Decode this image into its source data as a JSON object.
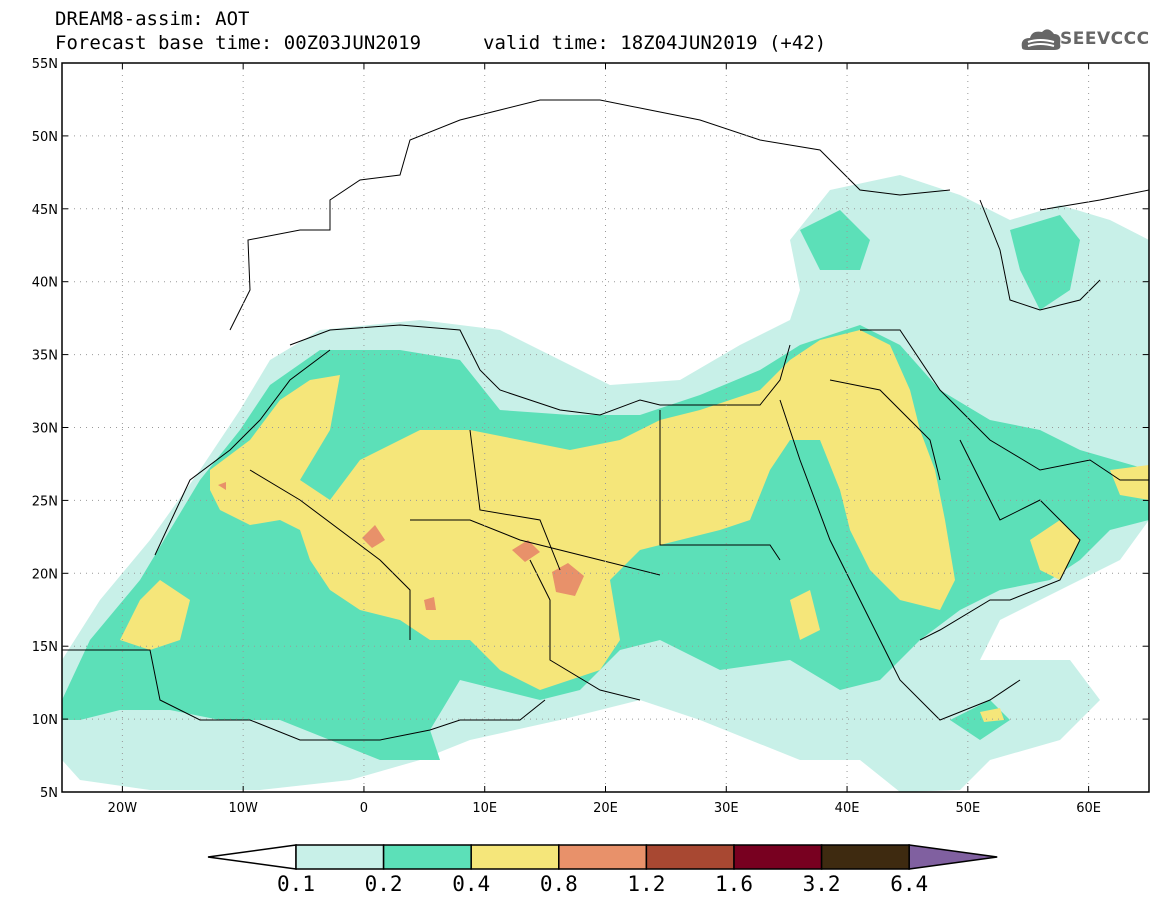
{
  "title": {
    "line1": "DREAM8-assim: AOT",
    "line2": "Forecast base time: 00Z03JUN2019",
    "valid": "valid time: 18Z04JUN2019 (+42)"
  },
  "logo": {
    "text": "SEEVCCC"
  },
  "axes": {
    "lat_ticks": [
      "55N",
      "50N",
      "45N",
      "40N",
      "35N",
      "30N",
      "25N",
      "20N",
      "15N",
      "10N",
      "5N"
    ],
    "lon_ticks": [
      "20W",
      "10W",
      "0",
      "10E",
      "20E",
      "30E",
      "40E",
      "50E",
      "60E"
    ]
  },
  "colorbar": {
    "levels": [
      "0.1",
      "0.2",
      "0.4",
      "0.8",
      "1.2",
      "1.6",
      "3.2",
      "6.4"
    ],
    "colors": [
      "#c8f0e8",
      "#5ce0b8",
      "#f5e67a",
      "#e8916a",
      "#a84832",
      "#780020",
      "#3e2a10",
      "#8060a0"
    ]
  },
  "map": {
    "lon_range": [
      -25,
      65
    ],
    "lat_range": [
      5,
      55
    ],
    "colors": {
      "c1": "#c8f0e8",
      "c2": "#5ce0b8",
      "c3": "#f5e67a",
      "c4": "#e8916a"
    }
  }
}
